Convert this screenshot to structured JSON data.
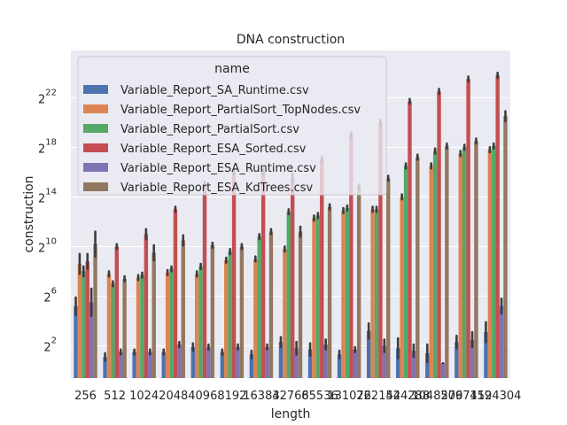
{
  "chart_data": {
    "type": "bar",
    "title": "DNA construction",
    "xlabel": "length",
    "ylabel": "construction",
    "yscale": "log2",
    "ylim_log2": [
      -0.6,
      25.8
    ],
    "yticks_log2": [
      2,
      6,
      10,
      14,
      18,
      22
    ],
    "ytick_base": "2",
    "grid": true,
    "background": "#eaeaf2",
    "legend_title": "name",
    "legend_position": "upper-left",
    "categories": [
      "256",
      "512",
      "1024",
      "2048",
      "4096",
      "8192",
      "16384",
      "32768",
      "65536",
      "131072",
      "262144",
      "524288",
      "1048576",
      "2097152",
      "4194304"
    ],
    "series": [
      {
        "name": "Variable_Report_SA_Runtime.csv",
        "color": "#4c72b0",
        "values": [
          5.2,
          1.1,
          1.5,
          1.5,
          1.9,
          1.5,
          1.3,
          2.3,
          1.7,
          1.3,
          3.2,
          1.8,
          1.4,
          2.3,
          3.1
        ],
        "err": [
          [
            4.5,
            5.9
          ],
          [
            0.8,
            1.4
          ],
          [
            1.3,
            1.7
          ],
          [
            1.3,
            1.7
          ],
          [
            1.6,
            2.2
          ],
          [
            1.3,
            1.7
          ],
          [
            1.0,
            1.6
          ],
          [
            1.9,
            2.7
          ],
          [
            1.2,
            2.2
          ],
          [
            1.0,
            1.6
          ],
          [
            2.6,
            3.8
          ],
          [
            1.0,
            2.6
          ],
          [
            0.7,
            2.1
          ],
          [
            1.8,
            2.8
          ],
          [
            2.3,
            3.9
          ]
        ]
      },
      {
        "name": "Variable_Report_PartialSort_TopNodes.csv",
        "color": "#dd8452",
        "values": [
          8.6,
          7.8,
          7.5,
          7.9,
          7.8,
          8.9,
          9.0,
          9.8,
          12.3,
          12.9,
          13.0,
          14.0,
          16.5,
          17.5,
          17.8
        ],
        "err": [
          [
            7.8,
            9.4
          ],
          [
            7.6,
            8.0
          ],
          [
            7.3,
            7.7
          ],
          [
            7.7,
            8.1
          ],
          [
            7.6,
            8.0
          ],
          [
            8.7,
            9.1
          ],
          [
            8.8,
            9.2
          ],
          [
            9.6,
            10.0
          ],
          [
            12.1,
            12.5
          ],
          [
            12.7,
            13.1
          ],
          [
            12.8,
            13.2
          ],
          [
            13.8,
            14.2
          ],
          [
            16.3,
            16.7
          ],
          [
            17.3,
            17.7
          ],
          [
            17.6,
            18.0
          ]
        ]
      },
      {
        "name": "Variable_Report_PartialSort.csv",
        "color": "#55a868",
        "values": [
          8.0,
          7.0,
          7.7,
          8.2,
          8.4,
          9.6,
          10.8,
          12.8,
          12.5,
          13.1,
          13.0,
          16.5,
          17.7,
          18.0,
          18.1
        ],
        "err": [
          [
            7.6,
            8.4
          ],
          [
            6.8,
            7.2
          ],
          [
            7.5,
            7.9
          ],
          [
            8.0,
            8.4
          ],
          [
            8.2,
            8.6
          ],
          [
            9.4,
            9.8
          ],
          [
            10.6,
            11.0
          ],
          [
            12.6,
            13.0
          ],
          [
            12.3,
            12.7
          ],
          [
            12.9,
            13.3
          ],
          [
            12.8,
            13.2
          ],
          [
            16.3,
            16.7
          ],
          [
            17.5,
            17.9
          ],
          [
            17.8,
            18.2
          ],
          [
            17.9,
            18.3
          ]
        ]
      },
      {
        "name": "Variable_Report_ESA_Sorted.csv",
        "color": "#c44e52",
        "values": [
          8.8,
          10.0,
          11.0,
          13.0,
          15.0,
          16.0,
          16.0,
          15.5,
          17.0,
          19.0,
          20.0,
          21.7,
          22.5,
          23.5,
          23.8
        ],
        "err": [
          [
            8.2,
            9.4
          ],
          [
            9.8,
            10.2
          ],
          [
            10.6,
            11.4
          ],
          [
            12.8,
            13.2
          ],
          [
            14.8,
            15.2
          ],
          [
            15.8,
            16.2
          ],
          [
            15.8,
            16.2
          ],
          [
            15.1,
            15.9
          ],
          [
            16.8,
            17.2
          ],
          [
            18.8,
            19.2
          ],
          [
            19.8,
            20.2
          ],
          [
            21.5,
            21.9
          ],
          [
            22.3,
            22.7
          ],
          [
            23.3,
            23.7
          ],
          [
            23.6,
            24.0
          ]
        ]
      },
      {
        "name": "Variable_Report_ESA_Runtime.csv",
        "color": "#8172b3",
        "values": [
          5.5,
          1.5,
          1.5,
          2.1,
          1.9,
          1.9,
          1.9,
          1.8,
          2.1,
          1.7,
          2.0,
          1.6,
          0.6,
          2.5,
          5.2
        ],
        "err": [
          [
            4.4,
            6.6
          ],
          [
            1.3,
            1.7
          ],
          [
            1.3,
            1.7
          ],
          [
            1.9,
            2.3
          ],
          [
            1.7,
            2.1
          ],
          [
            1.7,
            2.1
          ],
          [
            1.7,
            2.1
          ],
          [
            1.3,
            2.3
          ],
          [
            1.7,
            2.5
          ],
          [
            1.5,
            1.9
          ],
          [
            1.5,
            2.5
          ],
          [
            1.1,
            2.1
          ],
          [
            0.6,
            0.6
          ],
          [
            1.9,
            3.1
          ],
          [
            4.6,
            5.8
          ]
        ]
      },
      {
        "name": "Variable_Report_ESA_KdTrees.csv",
        "color": "#937860",
        "values": [
          10.2,
          7.4,
          9.5,
          10.5,
          10.1,
          10.0,
          11.2,
          11.2,
          13.2,
          14.8,
          15.5,
          17.2,
          18.1,
          18.5,
          20.5
        ],
        "err": [
          [
            9.2,
            11.2
          ],
          [
            7.2,
            7.6
          ],
          [
            8.9,
            10.1
          ],
          [
            10.1,
            10.9
          ],
          [
            9.9,
            10.3
          ],
          [
            9.8,
            10.2
          ],
          [
            11.0,
            11.4
          ],
          [
            10.8,
            11.6
          ],
          [
            13.0,
            13.4
          ],
          [
            14.6,
            15.0
          ],
          [
            15.3,
            15.7
          ],
          [
            17.0,
            17.4
          ],
          [
            17.9,
            18.3
          ],
          [
            18.3,
            18.7
          ],
          [
            20.1,
            20.9
          ]
        ]
      }
    ]
  }
}
